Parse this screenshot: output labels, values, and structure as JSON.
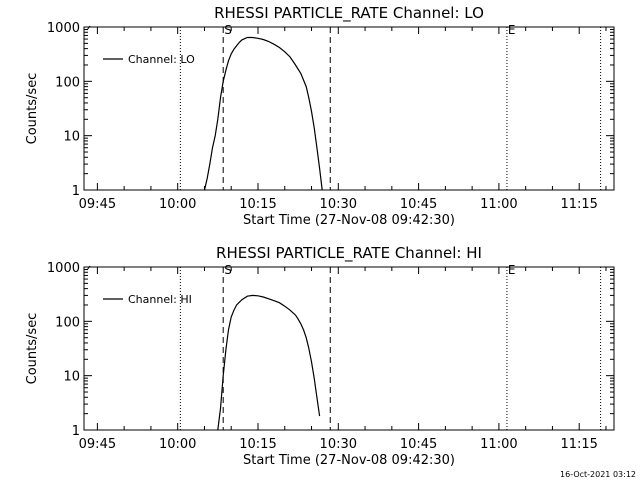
{
  "footer_timestamp": "16-Oct-2021 03:12",
  "chart_data": [
    {
      "type": "line",
      "title": "RHESSI PARTICLE_RATE Channel: LO",
      "xlabel": "Start Time (27-Nov-08 09:42:30)",
      "ylabel": "Counts/sec",
      "yscale": "log",
      "ylim": [
        1,
        1000
      ],
      "xlim": [
        "09:42:30",
        "11:21:30"
      ],
      "x_ticks": [
        "09:45",
        "10:00",
        "10:15",
        "10:30",
        "10:45",
        "11:00",
        "11:15"
      ],
      "y_ticks": [
        "1",
        "10",
        "100",
        "1000"
      ],
      "legend": {
        "position": "top-left",
        "entries": [
          "Channel: LO"
        ]
      },
      "grid": false,
      "dotted_lines": [
        "10:00:30",
        "11:19:00"
      ],
      "markers": [
        {
          "label": "S",
          "time": "10:08:30",
          "style": "dashed"
        },
        {
          "label": "",
          "time": "10:28:30",
          "style": "dashed"
        },
        {
          "label": "E",
          "time": "11:01:30",
          "style": "dotted"
        }
      ],
      "series": [
        {
          "name": "Channel: LO",
          "x": [
            "10:05:00",
            "10:05:30",
            "10:06:00",
            "10:06:30",
            "10:07:00",
            "10:07:30",
            "10:08:00",
            "10:08:30",
            "10:09:00",
            "10:09:30",
            "10:10:00",
            "10:10:30",
            "10:11:00",
            "10:11:30",
            "10:12:00",
            "10:13:00",
            "10:14:00",
            "10:15:00",
            "10:16:00",
            "10:17:00",
            "10:18:00",
            "10:19:00",
            "10:20:00",
            "10:21:00",
            "10:22:00",
            "10:23:00",
            "10:24:00",
            "10:24:30",
            "10:25:00",
            "10:25:30",
            "10:26:00",
            "10:26:30",
            "10:27:00"
          ],
          "y": [
            1.0,
            1.6,
            3,
            6,
            10,
            20,
            50,
            100,
            160,
            240,
            320,
            390,
            450,
            520,
            580,
            640,
            640,
            620,
            590,
            540,
            480,
            420,
            350,
            280,
            200,
            140,
            80,
            50,
            28,
            14,
            6,
            2.5,
            1.0
          ]
        }
      ]
    },
    {
      "type": "line",
      "title": "RHESSI PARTICLE_RATE Channel: HI",
      "xlabel": "Start Time (27-Nov-08 09:42:30)",
      "ylabel": "Counts/sec",
      "yscale": "log",
      "ylim": [
        1,
        1000
      ],
      "xlim": [
        "09:42:30",
        "11:21:30"
      ],
      "x_ticks": [
        "09:45",
        "10:00",
        "10:15",
        "10:30",
        "10:45",
        "11:00",
        "11:15"
      ],
      "y_ticks": [
        "1",
        "10",
        "100",
        "1000"
      ],
      "legend": {
        "position": "top-left",
        "entries": [
          "Channel: HI"
        ]
      },
      "grid": false,
      "dotted_lines": [
        "10:00:30",
        "11:19:00"
      ],
      "markers": [
        {
          "label": "S",
          "time": "10:08:30",
          "style": "dashed"
        },
        {
          "label": "",
          "time": "10:28:30",
          "style": "dashed"
        },
        {
          "label": "E",
          "time": "11:01:30",
          "style": "dotted"
        }
      ],
      "series": [
        {
          "name": "Channel: HI",
          "x": [
            "10:07:30",
            "10:08:00",
            "10:08:30",
            "10:09:00",
            "10:09:30",
            "10:10:00",
            "10:10:30",
            "10:11:00",
            "10:12:00",
            "10:13:00",
            "10:14:00",
            "10:15:00",
            "10:16:00",
            "10:17:00",
            "10:18:00",
            "10:19:00",
            "10:20:00",
            "10:21:00",
            "10:22:00",
            "10:22:30",
            "10:23:00",
            "10:23:30",
            "10:24:00",
            "10:24:30",
            "10:25:00",
            "10:25:30",
            "10:26:00",
            "10:26:30"
          ],
          "y": [
            1.0,
            2.5,
            10,
            30,
            70,
            120,
            160,
            200,
            250,
            290,
            300,
            295,
            280,
            260,
            240,
            220,
            190,
            160,
            130,
            110,
            90,
            70,
            50,
            32,
            18,
            9,
            4,
            1.8
          ]
        }
      ]
    }
  ]
}
